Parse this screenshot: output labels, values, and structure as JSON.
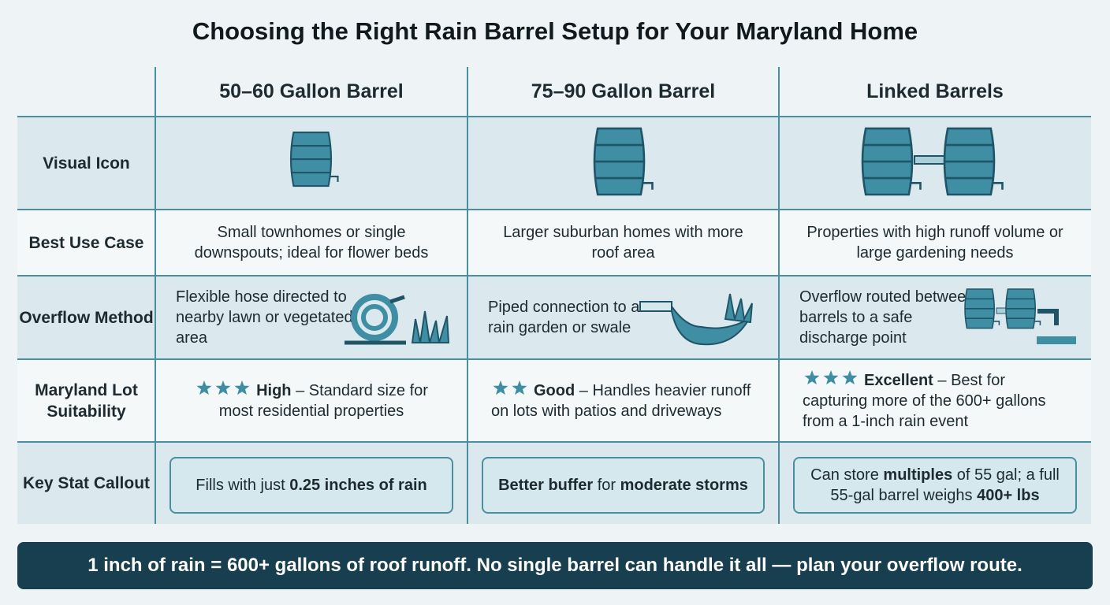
{
  "title": "Choosing the Right Rain Barrel Setup for Your Maryland Home",
  "columns": [
    "50–60 Gallon Barrel",
    "75–90 Gallon Barrel",
    "Linked Barrels"
  ],
  "rows": [
    {
      "label": "Visual Icon"
    },
    {
      "label": "Best Use Case",
      "cells": [
        "Small townhomes or single downspouts; ideal for flower beds",
        "Larger suburban homes with more roof area",
        "Properties with high runoff volume or large gardening needs"
      ]
    },
    {
      "label": "Overflow Method",
      "cells": [
        "Flexible hose directed to nearby lawn or vegetated area",
        "Piped connection to a rain garden or swale",
        "Overflow routed between barrels to a safe discharge point"
      ]
    },
    {
      "label": "Maryland Lot Suitability",
      "cells": [
        {
          "stars": 3,
          "rating": "High",
          "text": "– Standard size for most residential properties"
        },
        {
          "stars": 2,
          "rating": "Good",
          "text": "– Handles heavier runoff on lots with patios and driveways"
        },
        {
          "stars": 3,
          "rating": "Excellent",
          "text": "– Best for capturing more of the 600+ gallons from a 1-inch rain event"
        }
      ]
    },
    {
      "label": "Key Stat Callout",
      "cells": [
        [
          {
            "text": "Fills with just"
          },
          {
            "text": "0.25 inches of rain",
            "bold": true
          }
        ],
        [
          {
            "text": "Better buffer",
            "bold": true
          },
          {
            "text": "for"
          },
          {
            "text": "moderate storms",
            "bold": true
          }
        ],
        [
          {
            "text": "Can store"
          },
          {
            "text": "multiples",
            "bold": true
          },
          {
            "text": "of 55 gal; a full 55-gal barrel weighs"
          },
          {
            "text": "400+ lbs",
            "bold": true
          }
        ]
      ]
    }
  ],
  "footer": "1 inch of rain = 600+ gallons of roof runoff. No single barrel can handle it all — plan your overflow route."
}
